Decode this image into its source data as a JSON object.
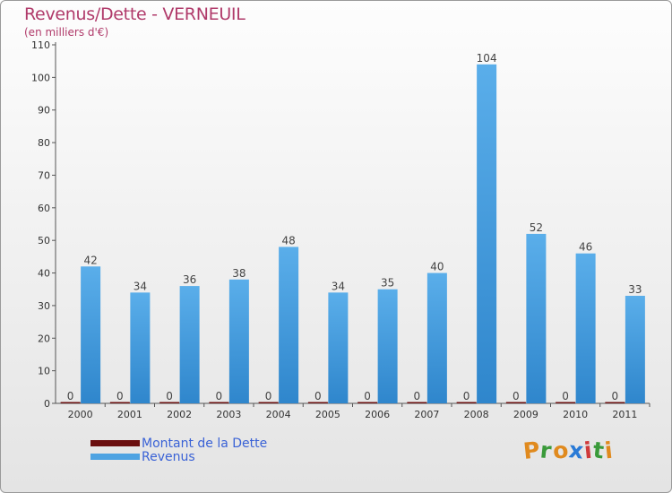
{
  "chart_data": {
    "type": "bar",
    "title": "Revenus/Dette - VERNEUIL",
    "subtitle": "(en milliers d'€)",
    "categories": [
      "2000",
      "2001",
      "2002",
      "2003",
      "2004",
      "2005",
      "2006",
      "2007",
      "2008",
      "2009",
      "2010",
      "2011"
    ],
    "series": [
      {
        "name": "Montant de la Dette",
        "color": "#6b0f0f",
        "values": [
          0,
          0,
          0,
          0,
          0,
          0,
          0,
          0,
          0,
          0,
          0,
          0
        ]
      },
      {
        "name": "Revenus",
        "color": "#4ea3e2",
        "values": [
          42,
          34,
          36,
          38,
          48,
          34,
          35,
          40,
          104,
          52,
          46,
          33
        ]
      }
    ],
    "ylim": [
      0,
      110
    ],
    "yticks": [
      0,
      10,
      20,
      30,
      40,
      50,
      60,
      70,
      80,
      90,
      100,
      110
    ],
    "grid": false,
    "legend_position": "bottom-left"
  },
  "logo": {
    "letters": [
      "P",
      "r",
      "o",
      "x",
      "i",
      "t",
      "i"
    ],
    "colors": [
      "#e08a1e",
      "#3a9a3a",
      "#e08a1e",
      "#2a7ad6",
      "#d03a3a",
      "#3a9a3a",
      "#e08a1e"
    ]
  }
}
